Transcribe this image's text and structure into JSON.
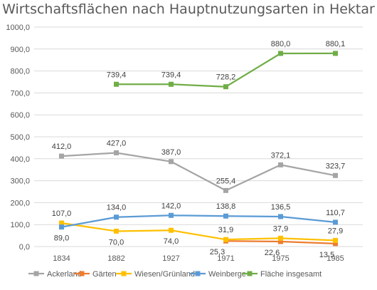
{
  "chart_data": {
    "type": "line",
    "title": "Wirtschaftsflächen nach Hauptnutzungsarten in Hektar",
    "xlabel": "",
    "ylabel": "",
    "categories": [
      "1834",
      "1882",
      "1927",
      "1971",
      "1975",
      "1985"
    ],
    "ylim": [
      0,
      1000
    ],
    "ytick_labels": [
      "0,0",
      "100,0",
      "200,0",
      "300,0",
      "400,0",
      "500,0",
      "600,0",
      "700,0",
      "800,0",
      "900,0",
      "1000,0"
    ],
    "grid": true,
    "legend_position": "bottom",
    "series": [
      {
        "name": "Ackerland",
        "color": "#a5a5a5",
        "values": [
          412.0,
          427.0,
          387.0,
          255.4,
          372.1,
          323.7
        ],
        "labels": [
          "412,0",
          "427,0",
          "387,0",
          "255,4",
          "372,1",
          "323,7"
        ]
      },
      {
        "name": "Gärten",
        "color": "#ed7d31",
        "values": [
          null,
          null,
          null,
          25.3,
          22.6,
          13.5
        ],
        "labels": [
          null,
          null,
          null,
          "25,3",
          "22,6",
          "13,5"
        ]
      },
      {
        "name": "Wiesen/Grünland",
        "color": "#ffc000",
        "values": [
          107.0,
          70.0,
          74.0,
          31.9,
          37.9,
          27.9
        ],
        "labels": [
          "107,0",
          "70,0",
          "74,0",
          "31,9",
          "37,9",
          "27,9"
        ]
      },
      {
        "name": "Weinberge",
        "color": "#5b9bd5",
        "values": [
          89.0,
          134.0,
          142.0,
          138.8,
          136.5,
          110.7
        ],
        "labels": [
          "89,0",
          "134,0",
          "142,0",
          "138,8",
          "136,5",
          "110,7"
        ]
      },
      {
        "name": "Fläche insgesamt",
        "color": "#70ad47",
        "values": [
          null,
          739.4,
          739.4,
          728.2,
          880.0,
          880.1
        ],
        "labels": [
          null,
          "739,4",
          "739,4",
          "728,2",
          "880,0",
          "880,1"
        ]
      }
    ]
  }
}
